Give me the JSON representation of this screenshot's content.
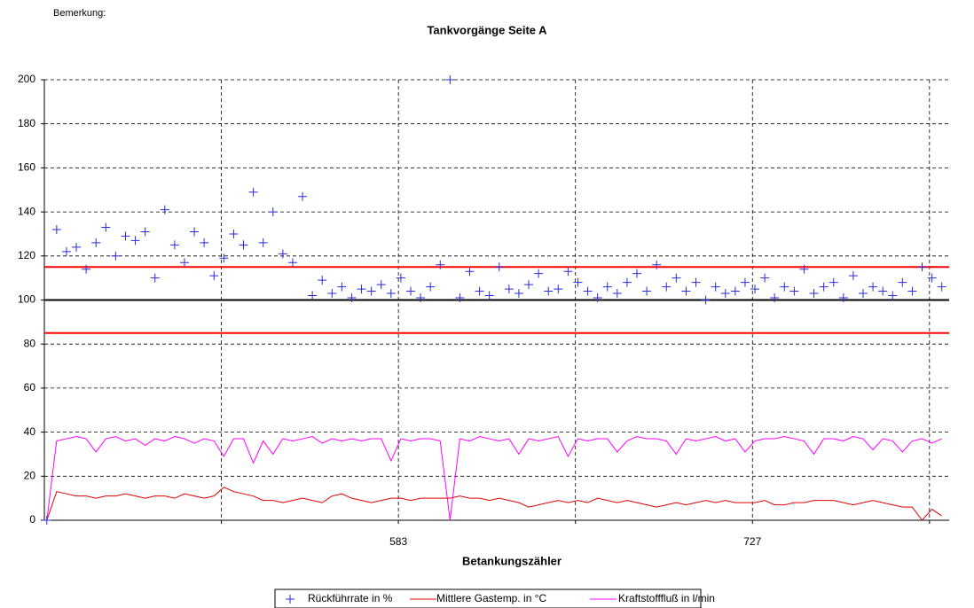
{
  "chart_data": {
    "type": "scatter",
    "remark": "Bemerkung:",
    "title": "Tankvorgänge Seite A",
    "x_label": "Betankungszähler",
    "xlim": [
      439,
      807
    ],
    "xticks": [
      583,
      727
    ],
    "xgrid": [
      511,
      583,
      655,
      727,
      799
    ],
    "ylim": [
      0,
      200
    ],
    "yticks": [
      0,
      20,
      40,
      60,
      80,
      100,
      120,
      140,
      160,
      180,
      200
    ],
    "grid": true,
    "legend": "bottom",
    "hlines": [
      {
        "value": 115,
        "color": "#ff0000"
      },
      {
        "value": 100,
        "color": "#000000"
      },
      {
        "value": 85,
        "color": "#ff0000"
      }
    ],
    "x": [
      440,
      444,
      448,
      452,
      456,
      460,
      464,
      468,
      472,
      476,
      480,
      484,
      488,
      492,
      496,
      500,
      504,
      508,
      512,
      516,
      520,
      524,
      528,
      532,
      536,
      540,
      544,
      548,
      552,
      556,
      560,
      564,
      568,
      572,
      576,
      580,
      584,
      588,
      592,
      596,
      600,
      604,
      608,
      612,
      616,
      620,
      624,
      628,
      632,
      636,
      640,
      644,
      648,
      652,
      656,
      660,
      664,
      668,
      672,
      676,
      680,
      684,
      688,
      692,
      696,
      700,
      704,
      708,
      712,
      716,
      720,
      724,
      728,
      732,
      736,
      740,
      744,
      748,
      752,
      756,
      760,
      764,
      768,
      772,
      776,
      780,
      784,
      788,
      792,
      796,
      800,
      804
    ],
    "series": [
      {
        "name": "Rückführrate in %",
        "mark": "marker",
        "color": "#2b2bd6",
        "values": [
          0,
          132,
          122,
          124,
          114,
          126,
          133,
          120,
          129,
          127,
          131,
          110,
          141,
          125,
          117,
          131,
          126,
          111,
          119,
          130,
          125,
          149,
          126,
          140,
          121,
          117,
          147,
          102,
          109,
          103,
          106,
          101,
          105,
          104,
          107,
          103,
          110,
          104,
          101,
          106,
          116,
          200,
          101,
          113,
          104,
          102,
          115,
          105,
          103,
          107,
          112,
          104,
          105,
          113,
          108,
          104,
          101,
          106,
          103,
          108,
          112,
          104,
          116,
          106,
          110,
          104,
          108,
          100,
          106,
          103,
          104,
          108,
          105,
          110,
          101,
          106,
          104,
          114,
          103,
          106,
          108,
          101,
          111,
          103,
          106,
          104,
          102,
          108,
          104,
          115,
          110,
          106
        ]
      },
      {
        "name": "Mittlere Gastemp. in °C",
        "mark": "line",
        "color": "#e00000",
        "values": [
          0,
          13,
          12,
          11,
          11,
          10,
          11,
          11,
          12,
          11,
          10,
          11,
          11,
          10,
          12,
          11,
          10,
          11,
          15,
          13,
          12,
          11,
          9,
          9,
          8,
          9,
          10,
          9,
          8,
          11,
          12,
          10,
          9,
          8,
          9,
          10,
          10,
          9,
          10,
          10,
          10,
          10,
          11,
          10,
          10,
          9,
          10,
          9,
          8,
          6,
          7,
          8,
          9,
          8,
          9,
          8,
          10,
          9,
          8,
          9,
          8,
          7,
          6,
          7,
          8,
          7,
          8,
          9,
          8,
          9,
          8,
          8,
          8,
          9,
          7,
          7,
          8,
          8,
          9,
          9,
          9,
          8,
          7,
          8,
          9,
          8,
          7,
          6,
          6,
          0,
          5,
          2
        ]
      },
      {
        "name": "Kraftstofffluß in l/min",
        "mark": "line",
        "color": "#ff00ff",
        "values": [
          0,
          36,
          37,
          38,
          37,
          31,
          37,
          38,
          36,
          37,
          34,
          37,
          36,
          38,
          37,
          35,
          37,
          36,
          29,
          37,
          37,
          26,
          36,
          30,
          37,
          36,
          37,
          38,
          35,
          37,
          36,
          37,
          36,
          37,
          37,
          27,
          37,
          36,
          37,
          37,
          36,
          0,
          37,
          36,
          38,
          37,
          36,
          37,
          30,
          37,
          36,
          37,
          38,
          29,
          37,
          36,
          37,
          37,
          31,
          36,
          38,
          37,
          37,
          36,
          30,
          37,
          36,
          37,
          38,
          36,
          37,
          31,
          36,
          37,
          37,
          38,
          37,
          36,
          30,
          37,
          37,
          36,
          38,
          37,
          32,
          37,
          36,
          31,
          36,
          37,
          35,
          37
        ]
      }
    ]
  }
}
